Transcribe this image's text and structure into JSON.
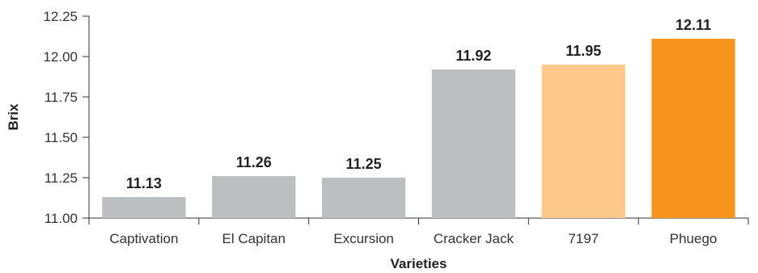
{
  "chart_data": {
    "type": "bar",
    "categories": [
      "Captivation",
      "El Capitan",
      "Excursion",
      "Cracker Jack",
      "7197",
      "Phuego"
    ],
    "values": [
      11.13,
      11.26,
      11.25,
      11.92,
      11.95,
      12.11
    ],
    "value_labels": [
      "11.13",
      "11.26",
      "11.25",
      "11.92",
      "11.95",
      "12.11"
    ],
    "bar_colors": [
      "#bcbec0",
      "#bcbec0",
      "#bcbec0",
      "#bcbec0",
      "#fdc98a",
      "#f7941d"
    ],
    "xlabel": "Varieties",
    "ylabel": "Brix",
    "ylim": [
      11.0,
      12.25
    ],
    "yticks": [
      "11.00",
      "11.25",
      "11.50",
      "11.75",
      "12.00",
      "12.25"
    ],
    "ytick_values": [
      11.0,
      11.25,
      11.5,
      11.75,
      12.0,
      12.25
    ],
    "grid": false,
    "legend": "none"
  }
}
